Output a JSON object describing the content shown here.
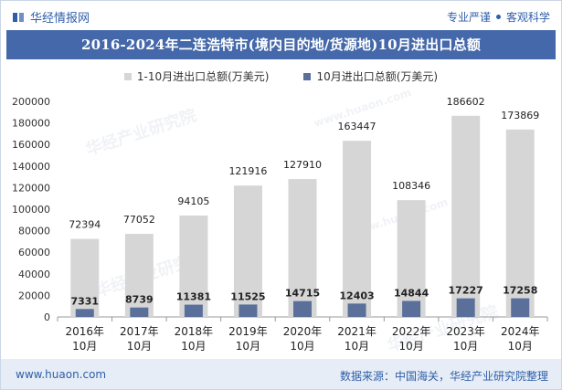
{
  "header": {
    "brand": "华经情报网",
    "tagline_left": "专业严谨",
    "tagline_right": "客观科学"
  },
  "watermark": {
    "cn": "华经产业研究院",
    "url": "www.huaon.com"
  },
  "colors": {
    "series_total": "#d6d6d6",
    "series_month": "#5a6f99",
    "title_bg": "#4468a9",
    "footer_bg": "#e6edf6",
    "brand": "#2f5ea8"
  },
  "footer": {
    "url": "www.huaon.com",
    "source": "数据来源：中国海关，华经产业研究院整理"
  },
  "chart_data": {
    "type": "bar",
    "title": "2016-2024年二连浩特市(境内目的地/货源地)10月进出口总额",
    "categories": [
      "2016年\n10月",
      "2017年\n10月",
      "2018年\n10月",
      "2019年\n10月",
      "2020年\n10月",
      "2021年\n10月",
      "2022年\n10月",
      "2023年\n10月",
      "2024年\n10月"
    ],
    "series": [
      {
        "name": "1-10月进出口总额(万美元)",
        "values": [
          72394,
          77052,
          94105,
          121916,
          127910,
          163447,
          108346,
          186602,
          173869
        ]
      },
      {
        "name": "10月进出口总额(万美元)",
        "values": [
          7331,
          8739,
          11381,
          11525,
          14715,
          12403,
          14844,
          17227,
          17258
        ]
      }
    ],
    "ylim": [
      0,
      200000
    ],
    "yticks": [
      "0",
      "20000",
      "40000",
      "60000",
      "80000",
      "100000",
      "120000",
      "140000",
      "160000",
      "180000",
      "200000"
    ],
    "grid": false,
    "legend": "top-center"
  }
}
